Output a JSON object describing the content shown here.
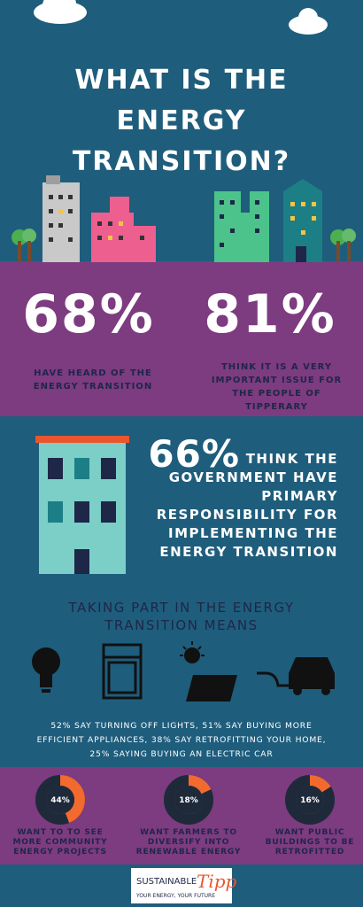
{
  "header": {
    "title": "WHAT IS THE ENERGY TRANSITION?"
  },
  "stats": [
    {
      "value": "68%",
      "label": "HAVE HEARD OF THE ENERGY TRANSITION"
    },
    {
      "value": "81%",
      "label": "THINK IT IS A VERY IMPORTANT ISSUE FOR THE PEOPLE OF TIPPERARY"
    }
  ],
  "government": {
    "value": "66%",
    "label": "THINK THE GOVERNMENT HAVE PRIMARY RESPONSIBILITY FOR IMPLEMENTING THE ENERGY TRANSITION"
  },
  "participation": {
    "title": "TAKING PART IN THE ENERGY TRANSITION MEANS",
    "text": "52% SAY TURNING OFF LIGHTS, 51% SAY BUYING MORE EFFICIENT APPLIANCES, 38% SAY RETROFITTING YOUR HOME, 25% SAYING BUYING AN ELECTRIC CAR"
  },
  "donuts": [
    {
      "value": 44,
      "label": "44%",
      "caption": "WANT TO TO SEE MORE COMMUNITY ENERGY PROJECTS"
    },
    {
      "value": 18,
      "label": "18%",
      "caption": "WANT FARMERS TO DIVERSIFY INTO RENEWABLE ENERGY"
    },
    {
      "value": 16,
      "label": "16%",
      "caption": "WANT PUBLIC BUILDINGS TO BE RETROFITTED"
    }
  ],
  "footer": {
    "brand": "SUSTAINABLE",
    "brand_script": "Tipp",
    "tagline": "YOUR ENERGY, YOUR FUTURE"
  }
}
